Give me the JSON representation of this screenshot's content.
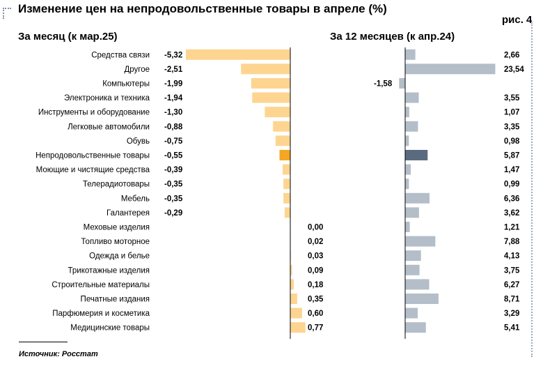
{
  "header": {
    "title": "Изменение цен на непродовольственные товары в апреле (%)",
    "figure_label": "рис. 4"
  },
  "footer": {
    "source": "Источник: Росстат"
  },
  "colors": {
    "monthly_bar": "#fdd591",
    "monthly_highlight": "#f5a623",
    "yearly_bar": "#b4bec9",
    "yearly_highlight": "#5a6b80",
    "axis": "#000000"
  },
  "chart_data": [
    {
      "type": "bar",
      "orientation": "horizontal",
      "title": "За месяц (к мар.25)",
      "categories": [
        "Средства связи",
        "Другое",
        "Компьютеры",
        "Электроника и техника",
        "Инструменты и оборудование",
        "Легковые автомобили",
        "Обувь",
        "Непродовольственные товары",
        "Моющие и чистящие средства",
        "Телерадиотовары",
        "Мебель",
        "Галантерея",
        "Меховые изделия",
        "Топливо моторное",
        "Одежда и белье",
        "Трикотажные изделия",
        "Строительные материалы",
        "Печатные издания",
        "Парфюмерия и косметика",
        "Медицинские товары"
      ],
      "values": [
        -5.32,
        -2.51,
        -1.99,
        -1.94,
        -1.3,
        -0.88,
        -0.75,
        -0.55,
        -0.39,
        -0.35,
        -0.35,
        -0.29,
        0.0,
        0.02,
        0.03,
        0.09,
        0.18,
        0.35,
        0.6,
        0.77
      ],
      "labels": [
        "-5,32",
        "-2,51",
        "-1,99",
        "-1,94",
        "-1,30",
        "-0,88",
        "-0,75",
        "-0,55",
        "-0,39",
        "-0,35",
        "-0,35",
        "-0,29",
        "0,00",
        "0,02",
        "0,03",
        "0,09",
        "0,18",
        "0,35",
        "0,60",
        "0,77"
      ],
      "highlight_category": "Непродовольственные товары",
      "grid": false
    },
    {
      "type": "bar",
      "orientation": "horizontal",
      "title": "За 12 месяцев (к апр.24)",
      "categories": [
        "Средства связи",
        "Другое",
        "Компьютеры",
        "Электроника и техника",
        "Инструменты и оборудование",
        "Легковые автомобили",
        "Обувь",
        "Непродовольственные товары",
        "Моющие и чистящие средства",
        "Телерадиотовары",
        "Мебель",
        "Галантерея",
        "Меховые изделия",
        "Топливо моторное",
        "Одежда и белье",
        "Трикотажные изделия",
        "Строительные материалы",
        "Печатные издания",
        "Парфюмерия и косметика",
        "Медицинские товары"
      ],
      "values": [
        2.66,
        23.54,
        -1.58,
        3.55,
        1.07,
        3.35,
        0.98,
        5.87,
        1.47,
        0.99,
        6.36,
        3.62,
        1.21,
        7.88,
        4.13,
        3.75,
        6.27,
        8.71,
        3.29,
        5.41
      ],
      "labels": [
        "2,66",
        "23,54",
        "-1,58",
        "3,55",
        "1,07",
        "3,35",
        "0,98",
        "5,87",
        "1,47",
        "0,99",
        "6,36",
        "3,62",
        "1,21",
        "7,88",
        "4,13",
        "3,75",
        "6,27",
        "8,71",
        "3,29",
        "5,41"
      ],
      "highlight_category": "Непродовольственные товары",
      "grid": false
    }
  ]
}
